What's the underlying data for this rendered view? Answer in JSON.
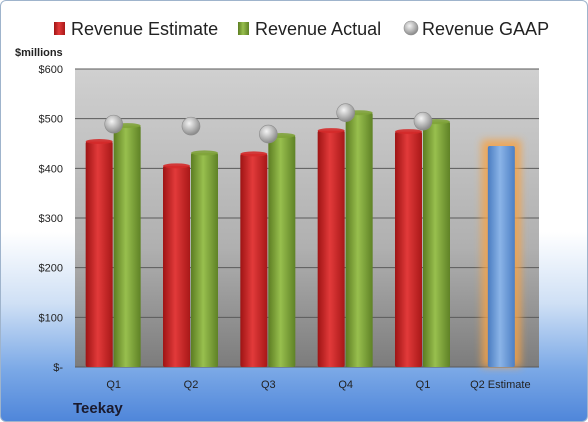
{
  "chart_data": {
    "type": "bar",
    "categories": [
      "Q1",
      "Q2",
      "Q3",
      "Q4",
      "Q1",
      "Q2 Estimate"
    ],
    "series": [
      {
        "name": "Revenue Estimate",
        "values": [
          454,
          405,
          429,
          476,
          474,
          null
        ],
        "color": "#d42a2a"
      },
      {
        "name": "Revenue Actual",
        "values": [
          486,
          431,
          466,
          512,
          494,
          null
        ],
        "color": "#7fa33a"
      },
      {
        "name": "Revenue GAAP",
        "values": [
          489,
          485,
          469,
          512,
          495,
          null
        ],
        "color": "#b8b8b8"
      }
    ],
    "estimate": {
      "category_index": 5,
      "value": 445,
      "color": "#6d9ed8",
      "glow": "#f5a347"
    },
    "ylabel": "$millions",
    "ylim": [
      0,
      600
    ],
    "yticks": [
      {
        "value": 0,
        "label": "$-"
      },
      {
        "value": 100,
        "label": "$100"
      },
      {
        "value": 200,
        "label": "$200"
      },
      {
        "value": 300,
        "label": "$300"
      },
      {
        "value": 400,
        "label": "$400"
      },
      {
        "value": 500,
        "label": "$500"
      },
      {
        "value": 600,
        "label": "$600"
      }
    ],
    "grid": true,
    "legend_position": "top"
  },
  "company": "Teekay"
}
